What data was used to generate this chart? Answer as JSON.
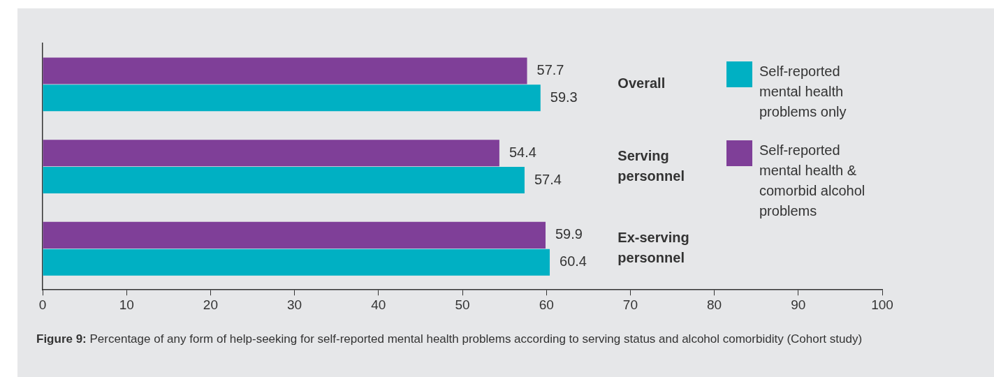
{
  "chart_data": {
    "type": "bar",
    "orientation": "horizontal",
    "categories": [
      "Overall",
      "Serving personnel",
      "Ex-serving personnel"
    ],
    "series": [
      {
        "name": "Self-reported mental health & comorbid alcohol problems",
        "color": "#7f3f98",
        "values": [
          57.7,
          54.4,
          59.9
        ]
      },
      {
        "name": "Self-reported mental health problems only",
        "color": "#00b0c3",
        "values": [
          59.3,
          57.4,
          60.4
        ]
      }
    ],
    "xlim": [
      0,
      100
    ],
    "xticks": [
      0,
      10,
      20,
      30,
      40,
      50,
      60,
      70,
      80,
      90,
      100
    ],
    "data_labels": true,
    "grid": false,
    "legend": "top right",
    "annotations": [
      "Figure 9: Percentage of any form of help-seeking for self-reported mental health problems according to serving status and alcohol comorbidity (Cohort study)"
    ]
  }
}
